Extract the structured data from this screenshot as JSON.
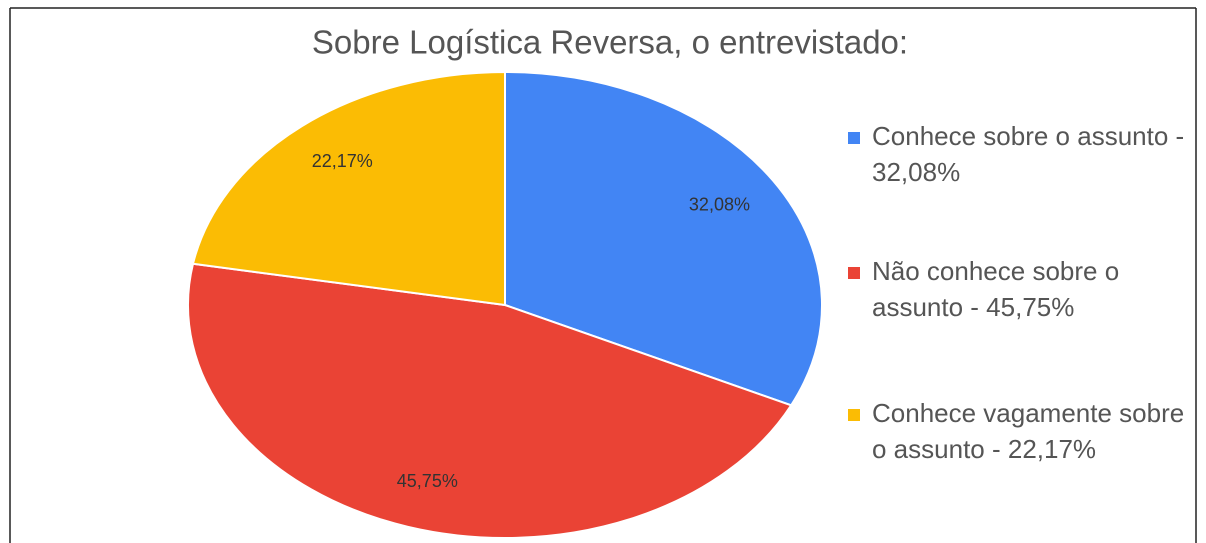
{
  "chart_data": {
    "type": "pie",
    "title": "Sobre Logística Reversa, o entrevistado:",
    "categories": [
      "Conhece sobre o assunto - 32,08%",
      "Não conhece sobre o assunto - 45,75%",
      "Conhece vagamente sobre o assunto - 22,17%"
    ],
    "values": [
      32.08,
      45.75,
      22.17
    ],
    "value_labels": [
      "32,08%",
      "45,75%",
      "22,17%"
    ],
    "colors": [
      "#4285f4",
      "#ea4335",
      "#fbbc04"
    ],
    "legend": "right"
  }
}
